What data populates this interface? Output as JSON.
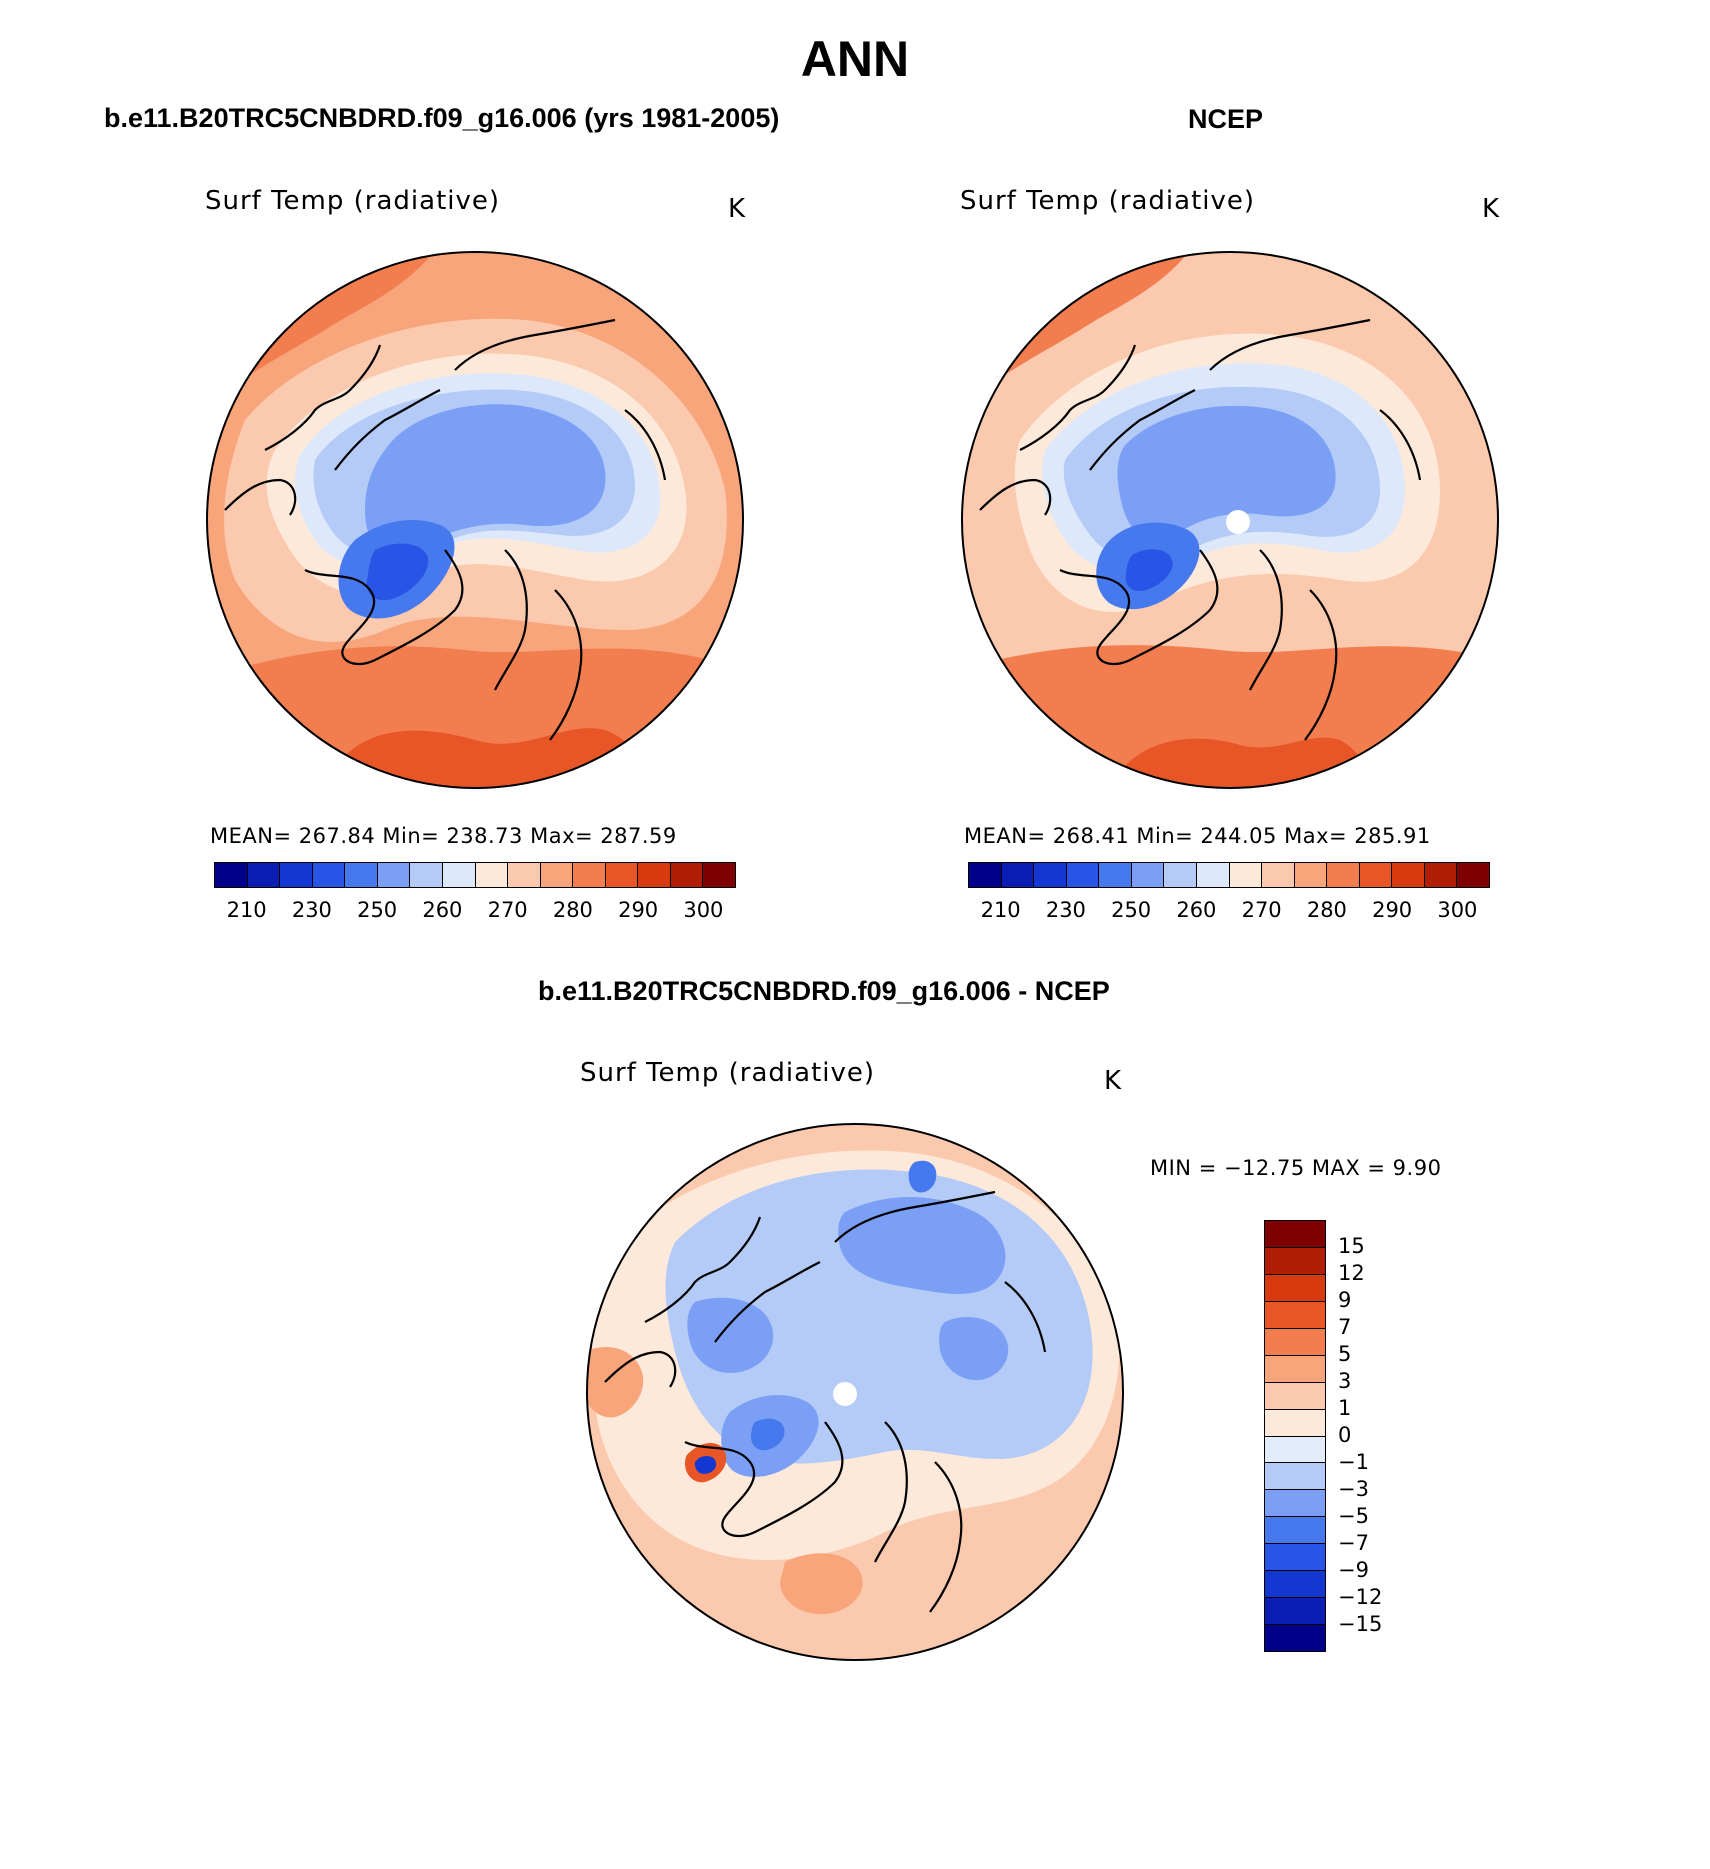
{
  "title": "ANN",
  "colors": {
    "c210": "#00008b",
    "c220": "#0a1eb4",
    "c230": "#1437d2",
    "c240": "#2855e6",
    "c250": "#4678ee",
    "c255": "#7a9ff5",
    "c260": "#b4cbf8",
    "c265": "#dde9fb",
    "c270": "#fde9da",
    "c275": "#fbc9ad",
    "c280": "#f8a57c",
    "c285": "#f27e50",
    "c290": "#e85628",
    "c295": "#d83a10",
    "c300": "#b01e06",
    "c305": "#7f0000",
    "coast": "#000000"
  },
  "panels": [
    {
      "header": "b.e11.B20TRC5CNBDRD.f09_g16.006 (yrs 1981-2005)",
      "label": "Surf Temp (radiative)",
      "units": "K",
      "stats": "MEAN= 267.84   Min= 238.73   Max= 287.59"
    },
    {
      "header": "NCEP",
      "label": "Surf Temp (radiative)",
      "units": "K",
      "stats": "MEAN= 268.41   Min= 244.05   Max= 285.91"
    }
  ],
  "abs_colorbar": {
    "ticks": [
      "210",
      "230",
      "250",
      "260",
      "270",
      "280",
      "290",
      "300"
    ]
  },
  "diff_panel": {
    "header": "b.e11.B20TRC5CNBDRD.f09_g16.006 - NCEP",
    "label": "Surf Temp (radiative)",
    "units": "K",
    "minmax": "MIN = −12.75 MAX =    9.90",
    "ticks": [
      "15",
      "12",
      "9",
      "7",
      "5",
      "3",
      "1",
      "0",
      "−1",
      "−3",
      "−5",
      "−7",
      "−9",
      "−12",
      "−15"
    ],
    "colors": [
      "#7f0000",
      "#b01e06",
      "#d83a10",
      "#e85628",
      "#f27e50",
      "#f8a57c",
      "#fbc9ad",
      "#fde9da",
      "#e2ecfa",
      "#b4cbf8",
      "#7a9ff5",
      "#4678ee",
      "#2855e6",
      "#1437d2",
      "#0a1eb4",
      "#00008b"
    ]
  }
}
